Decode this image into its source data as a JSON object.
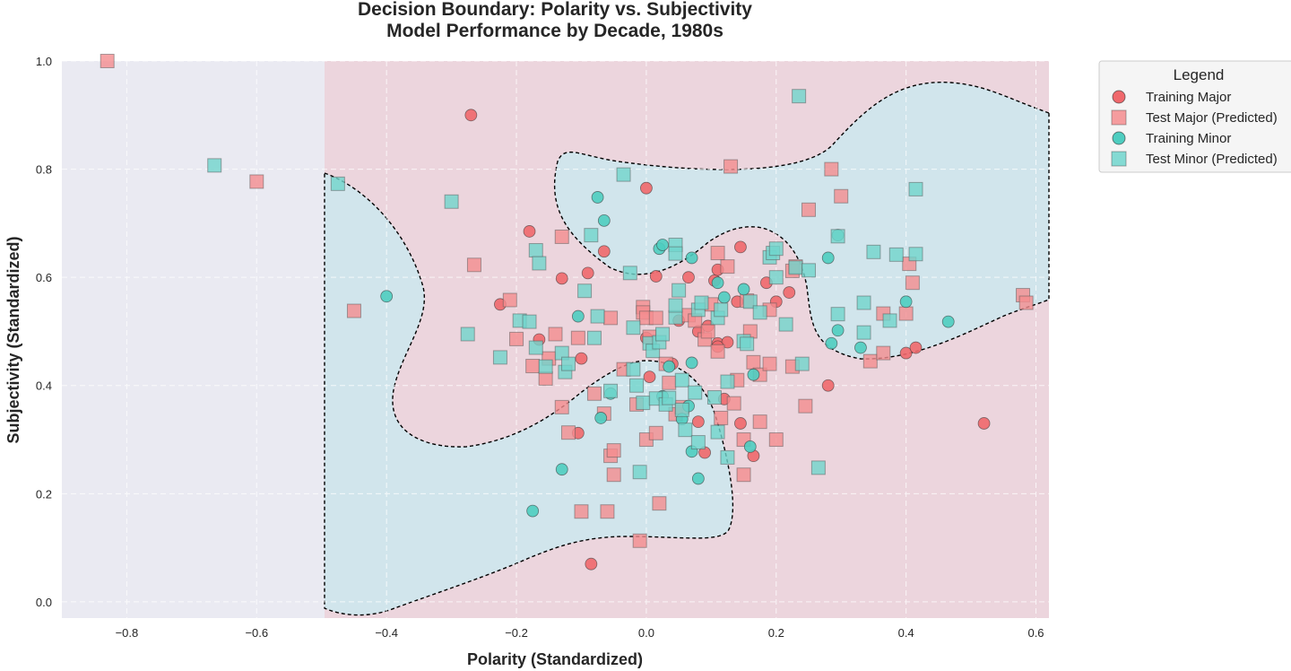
{
  "chart_data": {
    "type": "scatter",
    "title": "Decision Boundary: Polarity vs. Subjectivity",
    "subtitle": "Model Performance by Decade, 1980s",
    "xlabel": "Polarity (Standardized)",
    "ylabel": "Subjectivity (Standardized)",
    "xlim": [
      -0.9,
      0.62
    ],
    "ylim": [
      -0.03,
      1.0
    ],
    "xticks": [
      -0.8,
      -0.6,
      -0.4,
      -0.2,
      0.0,
      0.2,
      0.4,
      0.6
    ],
    "xtick_labels": [
      "−0.8",
      "−0.6",
      "−0.4",
      "−0.2",
      "0.0",
      "0.2",
      "0.4",
      "0.6"
    ],
    "yticks": [
      0.0,
      0.2,
      0.4,
      0.6,
      0.8,
      1.0
    ],
    "ytick_labels": [
      "0.0",
      "0.2",
      "0.4",
      "0.6",
      "0.8",
      "1.0"
    ],
    "grid": true,
    "legend_position": "outside-top-right",
    "background_color": "#eaeaf2",
    "region_colors": {
      "major": "#ecd5dd",
      "minor": "#d1e5ec"
    },
    "boundary_color": "#000000",
    "legend": {
      "title": "Legend",
      "entries": [
        {
          "label": "Training Major",
          "marker": "circle",
          "color": "#f0686c"
        },
        {
          "label": "Test Major (Predicted)",
          "marker": "square",
          "color": "#f48c8e"
        },
        {
          "label": "Training Minor",
          "marker": "circle",
          "color": "#4ecdc0"
        },
        {
          "label": "Test Minor (Predicted)",
          "marker": "square",
          "color": "#70d5cc"
        }
      ]
    },
    "series": [
      {
        "name": "Training Major",
        "marker": "circle",
        "color": "#f0686c",
        "points": [
          [
            -0.27,
            0.9
          ],
          [
            0.0,
            0.765
          ],
          [
            -0.18,
            0.685
          ],
          [
            -0.065,
            0.648
          ],
          [
            0.145,
            0.656
          ],
          [
            -0.09,
            0.608
          ],
          [
            -0.13,
            0.598
          ],
          [
            0.015,
            0.602
          ],
          [
            0.065,
            0.6
          ],
          [
            0.105,
            0.594
          ],
          [
            0.11,
            0.614
          ],
          [
            0.185,
            0.59
          ],
          [
            0.22,
            0.572
          ],
          [
            0.2,
            0.555
          ],
          [
            0.14,
            0.555
          ],
          [
            -0.225,
            0.55
          ],
          [
            -0.165,
            0.485
          ],
          [
            -0.1,
            0.45
          ],
          [
            -0.0,
            0.488
          ],
          [
            0.08,
            0.5
          ],
          [
            0.11,
            0.478
          ],
          [
            0.125,
            0.48
          ],
          [
            0.11,
            0.472
          ],
          [
            0.04,
            0.44
          ],
          [
            0.28,
            0.4
          ],
          [
            0.4,
            0.46
          ],
          [
            0.415,
            0.47
          ],
          [
            0.52,
            0.33
          ],
          [
            0.005,
            0.416
          ],
          [
            0.12,
            0.375
          ],
          [
            0.08,
            0.333
          ],
          [
            0.145,
            0.33
          ],
          [
            -0.105,
            0.312
          ],
          [
            0.09,
            0.276
          ],
          [
            0.165,
            0.27
          ],
          [
            -0.085,
            0.07
          ],
          [
            0.095,
            0.51
          ],
          [
            0.05,
            0.52
          ]
        ]
      },
      {
        "name": "Test Major (Predicted)",
        "marker": "square",
        "color": "#f48c8e",
        "points": [
          [
            -0.83,
            1.0
          ],
          [
            -0.6,
            0.777
          ],
          [
            -0.265,
            0.623
          ],
          [
            -0.45,
            0.538
          ],
          [
            -0.21,
            0.558
          ],
          [
            -0.2,
            0.486
          ],
          [
            -0.175,
            0.436
          ],
          [
            -0.155,
            0.413
          ],
          [
            -0.15,
            0.45
          ],
          [
            -0.14,
            0.495
          ],
          [
            -0.13,
            0.675
          ],
          [
            -0.13,
            0.36
          ],
          [
            -0.12,
            0.313
          ],
          [
            -0.105,
            0.488
          ],
          [
            -0.1,
            0.167
          ],
          [
            -0.08,
            0.385
          ],
          [
            -0.065,
            0.348
          ],
          [
            -0.06,
            0.167
          ],
          [
            -0.055,
            0.525
          ],
          [
            -0.055,
            0.27
          ],
          [
            -0.05,
            0.28
          ],
          [
            -0.05,
            0.235
          ],
          [
            -0.035,
            0.43
          ],
          [
            -0.015,
            0.365
          ],
          [
            -0.01,
            0.113
          ],
          [
            -0.005,
            0.545
          ],
          [
            -0.005,
            0.535
          ],
          [
            0.0,
            0.3
          ],
          [
            0.0,
            0.525
          ],
          [
            0.005,
            0.49
          ],
          [
            0.015,
            0.312
          ],
          [
            0.015,
            0.525
          ],
          [
            0.02,
            0.182
          ],
          [
            0.03,
            0.44
          ],
          [
            0.035,
            0.405
          ],
          [
            0.045,
            0.347
          ],
          [
            0.055,
            0.36
          ],
          [
            0.065,
            0.53
          ],
          [
            0.075,
            0.52
          ],
          [
            0.09,
            0.485
          ],
          [
            0.095,
            0.5
          ],
          [
            0.1,
            0.55
          ],
          [
            0.11,
            0.645
          ],
          [
            0.11,
            0.463
          ],
          [
            0.115,
            0.34
          ],
          [
            0.125,
            0.62
          ],
          [
            0.13,
            0.805
          ],
          [
            0.135,
            0.367
          ],
          [
            0.14,
            0.41
          ],
          [
            0.15,
            0.3
          ],
          [
            0.15,
            0.235
          ],
          [
            0.155,
            0.557
          ],
          [
            0.16,
            0.5
          ],
          [
            0.165,
            0.443
          ],
          [
            0.175,
            0.42
          ],
          [
            0.175,
            0.333
          ],
          [
            0.19,
            0.44
          ],
          [
            0.19,
            0.54
          ],
          [
            0.2,
            0.3
          ],
          [
            0.225,
            0.435
          ],
          [
            0.225,
            0.612
          ],
          [
            0.23,
            0.62
          ],
          [
            0.245,
            0.362
          ],
          [
            0.25,
            0.725
          ],
          [
            0.285,
            0.8
          ],
          [
            0.3,
            0.75
          ],
          [
            0.345,
            0.445
          ],
          [
            0.365,
            0.46
          ],
          [
            0.365,
            0.533
          ],
          [
            0.4,
            0.533
          ],
          [
            0.405,
            0.625
          ],
          [
            0.41,
            0.59
          ],
          [
            0.58,
            0.567
          ],
          [
            0.585,
            0.553
          ]
        ]
      },
      {
        "name": "Training Minor",
        "marker": "circle",
        "color": "#4ecdc0",
        "points": [
          [
            -0.4,
            0.565
          ],
          [
            -0.175,
            0.168
          ],
          [
            -0.13,
            0.245
          ],
          [
            -0.105,
            0.528
          ],
          [
            -0.075,
            0.748
          ],
          [
            -0.065,
            0.705
          ],
          [
            -0.07,
            0.34
          ],
          [
            -0.055,
            0.385
          ],
          [
            0.02,
            0.653
          ],
          [
            0.025,
            0.66
          ],
          [
            0.025,
            0.38
          ],
          [
            0.035,
            0.435
          ],
          [
            0.055,
            0.338
          ],
          [
            0.07,
            0.636
          ],
          [
            0.07,
            0.442
          ],
          [
            0.065,
            0.362
          ],
          [
            0.07,
            0.278
          ],
          [
            0.08,
            0.228
          ],
          [
            0.11,
            0.59
          ],
          [
            0.12,
            0.563
          ],
          [
            0.15,
            0.578
          ],
          [
            0.16,
            0.287
          ],
          [
            0.165,
            0.42
          ],
          [
            0.28,
            0.636
          ],
          [
            0.285,
            0.478
          ],
          [
            0.295,
            0.502
          ],
          [
            0.295,
            0.678
          ],
          [
            0.33,
            0.47
          ],
          [
            0.4,
            0.555
          ],
          [
            0.465,
            0.518
          ]
        ]
      },
      {
        "name": "Test Minor (Predicted)",
        "marker": "square",
        "color": "#70d5cc",
        "points": [
          [
            -0.665,
            0.807
          ],
          [
            -0.475,
            0.773
          ],
          [
            -0.3,
            0.74
          ],
          [
            -0.275,
            0.495
          ],
          [
            -0.225,
            0.452
          ],
          [
            -0.195,
            0.52
          ],
          [
            -0.18,
            0.518
          ],
          [
            -0.17,
            0.65
          ],
          [
            -0.165,
            0.626
          ],
          [
            -0.17,
            0.47
          ],
          [
            -0.155,
            0.435
          ],
          [
            -0.13,
            0.46
          ],
          [
            -0.125,
            0.425
          ],
          [
            -0.12,
            0.44
          ],
          [
            -0.095,
            0.575
          ],
          [
            -0.085,
            0.678
          ],
          [
            -0.08,
            0.488
          ],
          [
            -0.075,
            0.528
          ],
          [
            -0.055,
            0.39
          ],
          [
            -0.035,
            0.79
          ],
          [
            -0.025,
            0.608
          ],
          [
            -0.02,
            0.507
          ],
          [
            -0.02,
            0.43
          ],
          [
            -0.015,
            0.4
          ],
          [
            -0.01,
            0.24
          ],
          [
            -0.005,
            0.368
          ],
          [
            0.005,
            0.478
          ],
          [
            0.01,
            0.464
          ],
          [
            0.015,
            0.376
          ],
          [
            0.02,
            0.48
          ],
          [
            0.025,
            0.495
          ],
          [
            0.03,
            0.365
          ],
          [
            0.035,
            0.377
          ],
          [
            0.045,
            0.66
          ],
          [
            0.045,
            0.644
          ],
          [
            0.045,
            0.526
          ],
          [
            0.045,
            0.548
          ],
          [
            0.05,
            0.576
          ],
          [
            0.055,
            0.41
          ],
          [
            0.055,
            0.355
          ],
          [
            0.06,
            0.318
          ],
          [
            0.075,
            0.387
          ],
          [
            0.08,
            0.295
          ],
          [
            0.08,
            0.54
          ],
          [
            0.085,
            0.553
          ],
          [
            0.105,
            0.378
          ],
          [
            0.11,
            0.525
          ],
          [
            0.11,
            0.314
          ],
          [
            0.115,
            0.54
          ],
          [
            0.125,
            0.267
          ],
          [
            0.125,
            0.407
          ],
          [
            0.15,
            0.482
          ],
          [
            0.155,
            0.477
          ],
          [
            0.16,
            0.555
          ],
          [
            0.175,
            0.535
          ],
          [
            0.19,
            0.637
          ],
          [
            0.195,
            0.645
          ],
          [
            0.2,
            0.653
          ],
          [
            0.2,
            0.6
          ],
          [
            0.215,
            0.513
          ],
          [
            0.23,
            0.618
          ],
          [
            0.235,
            0.935
          ],
          [
            0.24,
            0.44
          ],
          [
            0.25,
            0.613
          ],
          [
            0.265,
            0.248
          ],
          [
            0.295,
            0.532
          ],
          [
            0.295,
            0.676
          ],
          [
            0.335,
            0.553
          ],
          [
            0.335,
            0.498
          ],
          [
            0.35,
            0.647
          ],
          [
            0.375,
            0.52
          ],
          [
            0.385,
            0.642
          ],
          [
            0.415,
            0.763
          ],
          [
            0.415,
            0.643
          ]
        ]
      }
    ]
  }
}
